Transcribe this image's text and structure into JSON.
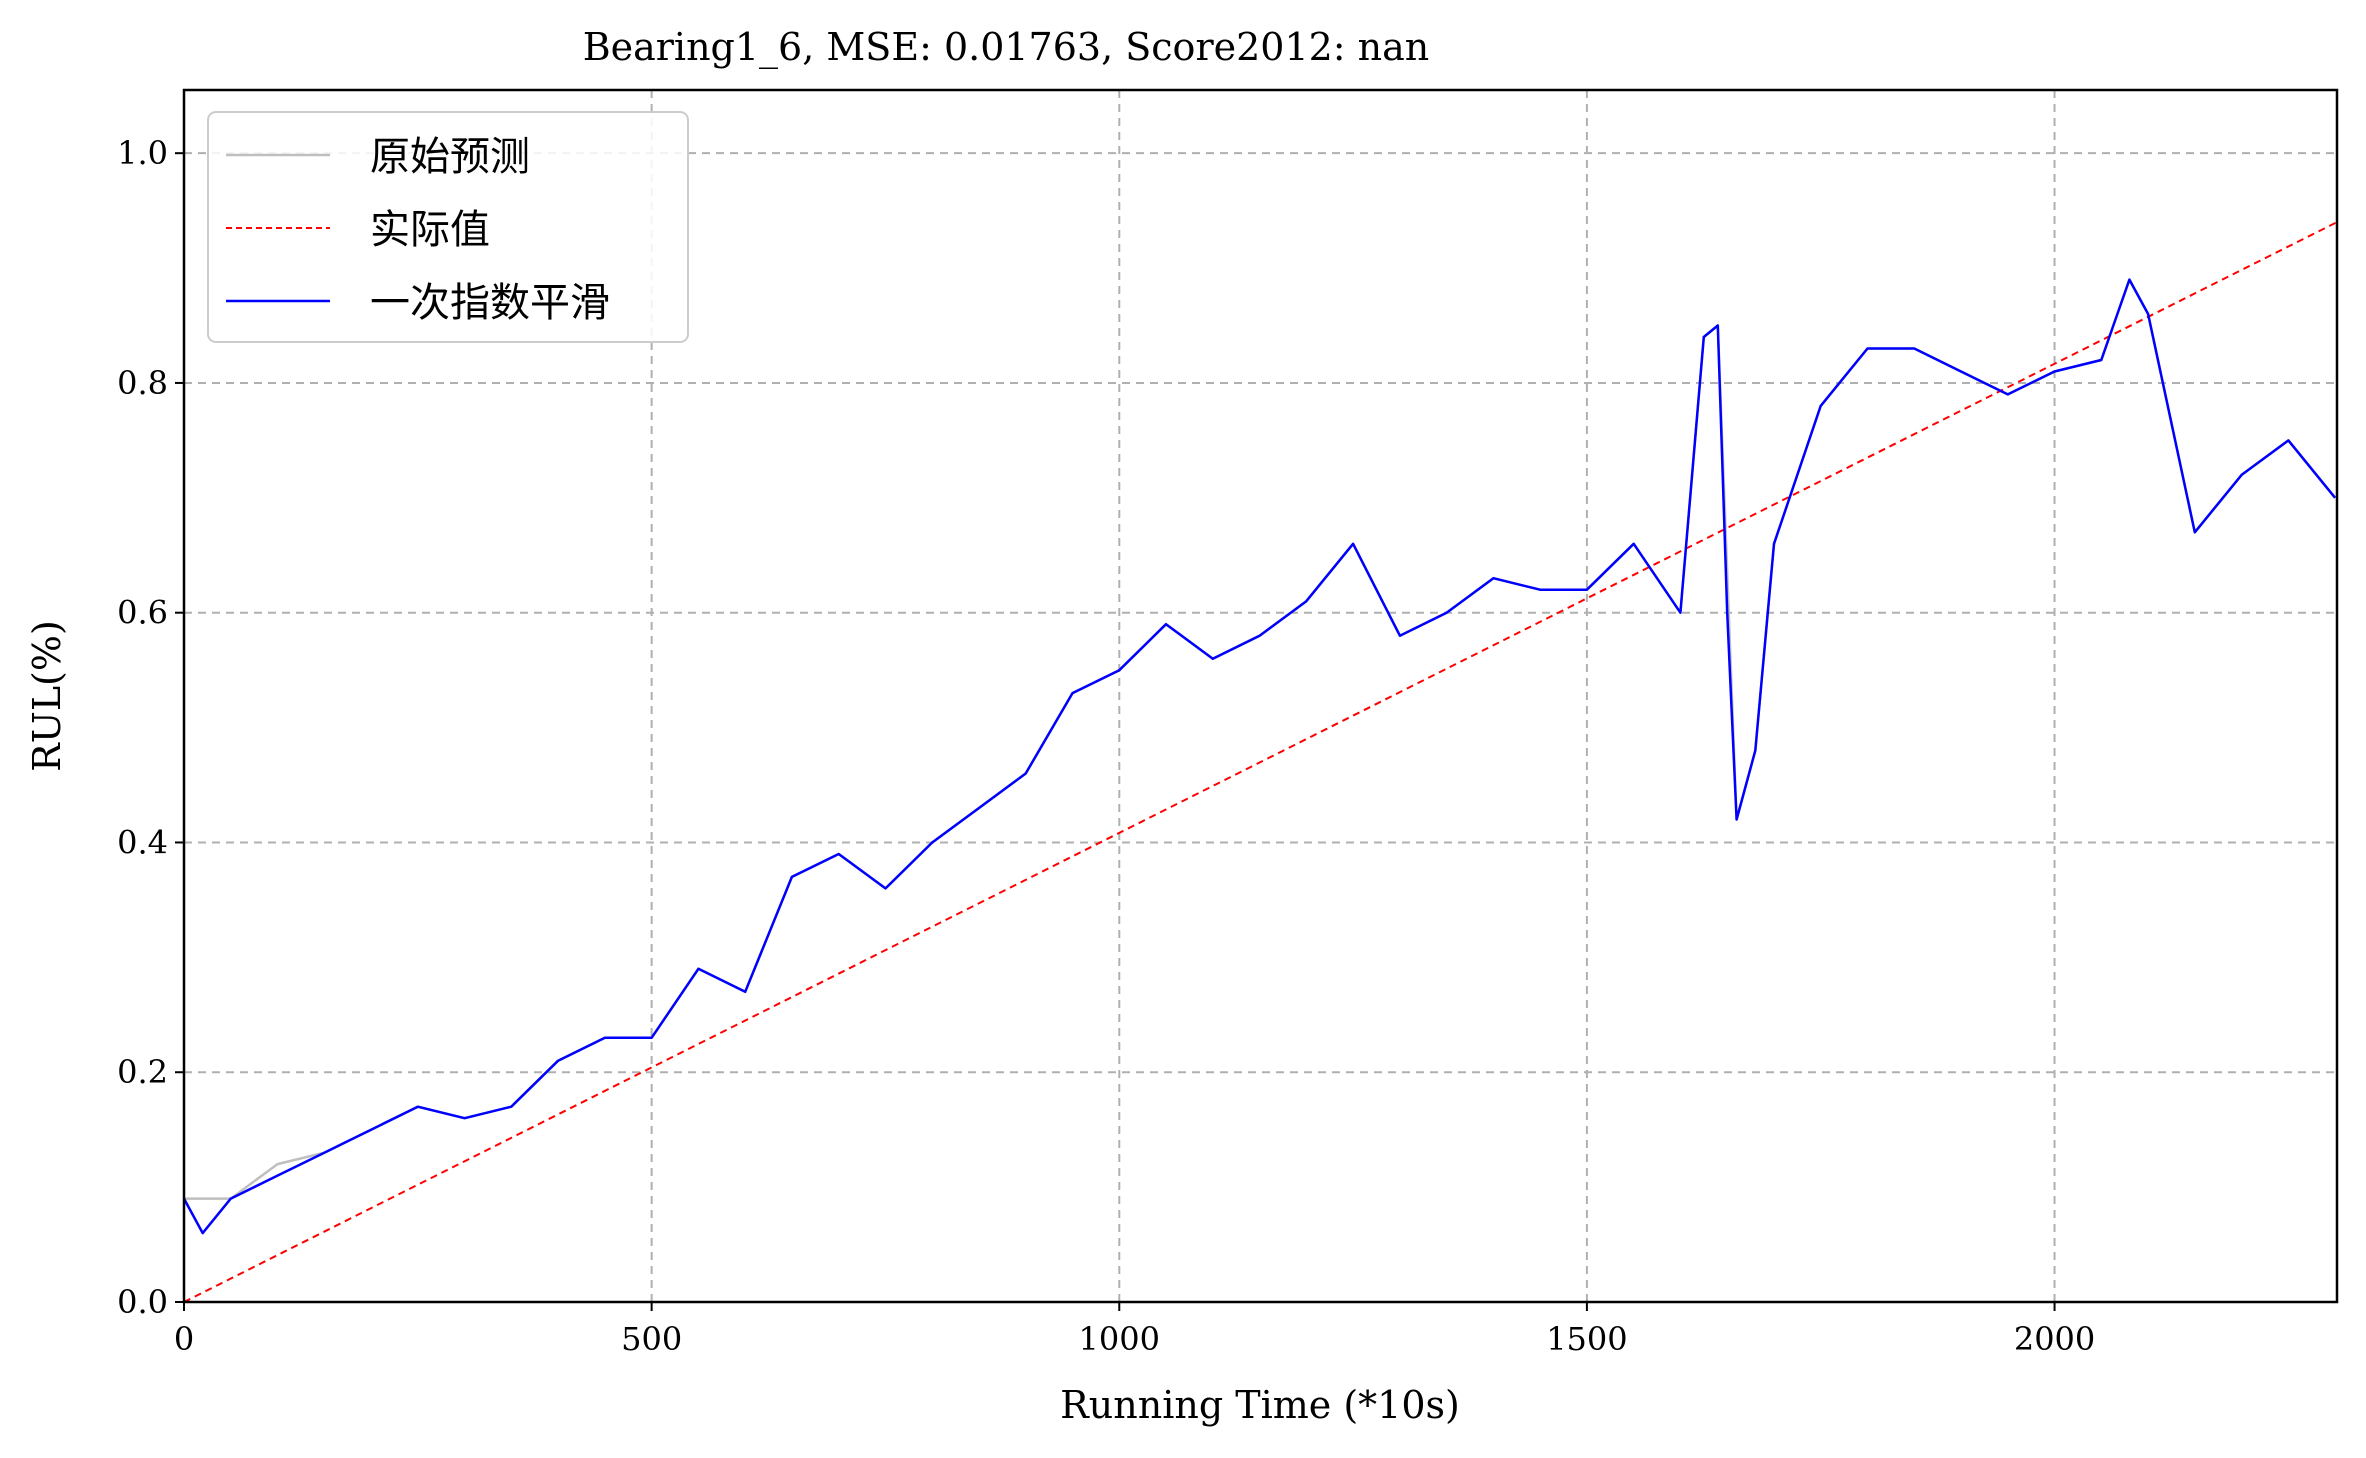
{
  "chart_data": {
    "type": "line",
    "title": "Bearing1_6, MSE: 0.01763, Score2012: nan",
    "xlabel": "Running Time (*10s)",
    "ylabel": "RUL(%)",
    "xlim": [
      0,
      2302
    ],
    "ylim": [
      0,
      1.055
    ],
    "xticks": [
      0,
      500,
      1000,
      1500,
      2000
    ],
    "xtick_labels": [
      "0",
      "500",
      "1000",
      "1500",
      "2000"
    ],
    "yticks": [
      0.0,
      0.2,
      0.4,
      0.6,
      0.8,
      1.0
    ],
    "ytick_labels": [
      "0.0",
      "0.2",
      "0.4",
      "0.6",
      "0.8",
      "1.0"
    ],
    "grid": true,
    "legend_position": "top-left",
    "series": [
      {
        "name": "原始预测",
        "style": "solid",
        "color": "#bfbfbf",
        "x": [
          0,
          50,
          100,
          150,
          200,
          250,
          300,
          350,
          400,
          450,
          500,
          550,
          600,
          650,
          700,
          750,
          800,
          850,
          900,
          950,
          1000,
          1050,
          1100,
          1150,
          1200,
          1250,
          1300,
          1350,
          1400,
          1450,
          1500,
          1550,
          1600,
          1625,
          1640,
          1660,
          1680,
          1700,
          1750,
          1800,
          1850,
          1900,
          1950,
          2000,
          2050,
          2080,
          2100,
          2150,
          2200,
          2250,
          2300
        ],
        "y": [
          0.09,
          0.09,
          0.12,
          0.13,
          0.15,
          0.17,
          0.16,
          0.17,
          0.21,
          0.23,
          0.23,
          0.29,
          0.27,
          0.37,
          0.39,
          0.36,
          0.4,
          0.43,
          0.46,
          0.53,
          0.55,
          0.59,
          0.56,
          0.58,
          0.61,
          0.66,
          0.58,
          0.6,
          0.63,
          0.62,
          0.62,
          0.66,
          0.6,
          0.84,
          0.85,
          0.42,
          0.48,
          0.66,
          0.78,
          0.83,
          0.83,
          0.81,
          0.79,
          0.81,
          0.82,
          0.89,
          0.86,
          0.67,
          0.72,
          0.75,
          0.7
        ]
      },
      {
        "name": "实际值",
        "style": "dashed",
        "color": "#ff0000",
        "x": [
          0,
          2302
        ],
        "y": [
          0.0,
          0.94
        ]
      },
      {
        "name": "一次指数平滑",
        "style": "solid",
        "color": "#0000ff",
        "x": [
          0,
          20,
          50,
          100,
          150,
          200,
          250,
          300,
          350,
          400,
          450,
          500,
          550,
          600,
          650,
          700,
          750,
          800,
          850,
          900,
          950,
          1000,
          1050,
          1100,
          1150,
          1200,
          1250,
          1300,
          1350,
          1400,
          1450,
          1500,
          1550,
          1600,
          1625,
          1640,
          1650,
          1660,
          1680,
          1700,
          1750,
          1800,
          1850,
          1900,
          1950,
          2000,
          2050,
          2080,
          2100,
          2150,
          2200,
          2250,
          2300
        ],
        "y": [
          0.09,
          0.06,
          0.09,
          0.11,
          0.13,
          0.15,
          0.17,
          0.16,
          0.17,
          0.21,
          0.23,
          0.23,
          0.29,
          0.27,
          0.37,
          0.39,
          0.36,
          0.4,
          0.43,
          0.46,
          0.53,
          0.55,
          0.59,
          0.56,
          0.58,
          0.61,
          0.66,
          0.58,
          0.6,
          0.63,
          0.62,
          0.62,
          0.66,
          0.6,
          0.84,
          0.85,
          0.6,
          0.42,
          0.48,
          0.66,
          0.78,
          0.83,
          0.83,
          0.81,
          0.79,
          0.81,
          0.82,
          0.89,
          0.86,
          0.67,
          0.72,
          0.75,
          0.7
        ]
      }
    ]
  }
}
